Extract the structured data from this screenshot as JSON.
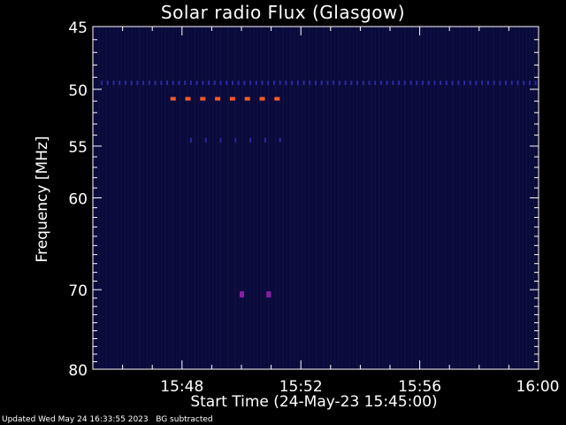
{
  "chart_data": {
    "type": "heatmap",
    "title": "Solar radio Flux (Glasgow)",
    "xlabel": "Start Time (24-May-23 15:45:00)",
    "ylabel": "Frequency [MHz]",
    "x_range_minutes_after_15_00": [
      45,
      60
    ],
    "y_range_mhz": [
      45,
      80
    ],
    "y_scale": "log",
    "y_ticks": [
      45,
      50,
      55,
      60,
      70,
      80
    ],
    "y_tick_labels": [
      "45",
      "50",
      "55",
      "60",
      "70",
      "80"
    ],
    "x_ticks_minutes": [
      48,
      52,
      56,
      60
    ],
    "x_tick_labels": [
      "15:48",
      "15:52",
      "15:56",
      "16:00"
    ],
    "background": "#000000",
    "spectrogram_color": "#0a0a3a",
    "features": [
      {
        "name": "narrowband interference",
        "freq_mhz": 50.8,
        "start_min": 47.7,
        "end_min": 51.4,
        "color": "#ff5a28"
      },
      {
        "name": "weak band",
        "freq_mhz": 49.5,
        "start_min": 45.3,
        "end_min": 60.0,
        "color": "#2a2aa0"
      },
      {
        "name": "weak band",
        "freq_mhz": 54.5,
        "start_min": 48.3,
        "end_min": 51.4,
        "color": "#2a2aa0"
      },
      {
        "name": "spot",
        "freq_mhz": 70.5,
        "start_min": 50.0,
        "end_min": 50.1,
        "color": "#8a1aa8"
      },
      {
        "name": "spot",
        "freq_mhz": 70.5,
        "start_min": 50.9,
        "end_min": 51.0,
        "color": "#8a1aa8"
      }
    ]
  },
  "footer": {
    "text": "Updated Wed May 24 16:33:55 2023   BG subtracted"
  }
}
